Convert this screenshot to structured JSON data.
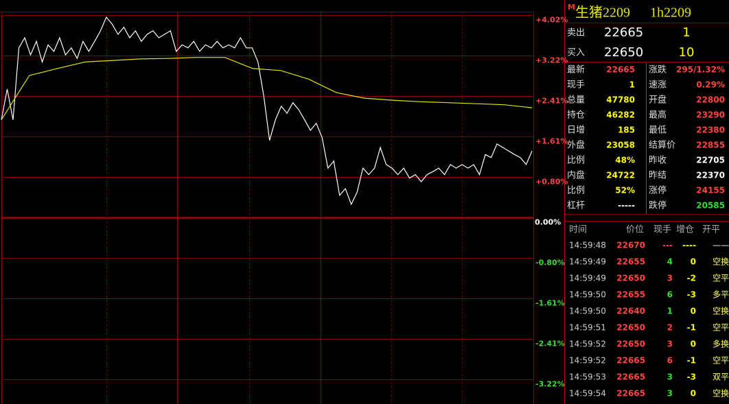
{
  "chart_data": {
    "type": "line",
    "background": "#000000",
    "grid_color": "#800000",
    "ylim": [
      -3.71,
      4.09
    ],
    "yticks": [
      {
        "value": 4.02,
        "label": "+4.02%"
      },
      {
        "value": 3.22,
        "label": "+3.22%"
      },
      {
        "value": 2.41,
        "label": "+2.41%"
      },
      {
        "value": 1.61,
        "label": "+1.61%"
      },
      {
        "value": 0.8,
        "label": "+0.80%"
      },
      {
        "value": 0,
        "label": "0.00%"
      },
      {
        "value": -0.8,
        "label": "-0.80%"
      },
      {
        "value": -1.61,
        "label": "-1.61%"
      },
      {
        "value": -2.41,
        "label": "-2.41%"
      },
      {
        "value": -3.22,
        "label": "-3.22%"
      }
    ],
    "series": [
      {
        "color": "#ffffff",
        "values": [
          1.94,
          2.55,
          1.94,
          3.37,
          3.57,
          3.23,
          3.5,
          3.09,
          3.43,
          3.3,
          3.57,
          3.23,
          3.37,
          3.16,
          3.5,
          3.3,
          3.5,
          3.71,
          3.98,
          3.84,
          3.64,
          3.78,
          3.57,
          3.71,
          3.5,
          3.64,
          3.71,
          3.57,
          3.64,
          3.71,
          3.3,
          3.43,
          3.37,
          3.5,
          3.3,
          3.43,
          3.37,
          3.5,
          3.37,
          3.43,
          3.37,
          3.57,
          3.37,
          3.37,
          3.09,
          2.41,
          1.53,
          1.94,
          2.21,
          2.07,
          2.28,
          2.14,
          1.94,
          1.73,
          1.87,
          1.59,
          0.98,
          1.12,
          0.44,
          0.57,
          0.26,
          0.5,
          0.98,
          0.85,
          0.98,
          1.39,
          1.05,
          0.98,
          0.85,
          0.98,
          0.78,
          0.85,
          0.71,
          0.85,
          0.91,
          0.98,
          0.85,
          1.05,
          0.98,
          1.05,
          0.98,
          1.05,
          0.85,
          1.25,
          1.19,
          1.46,
          1.39,
          1.32,
          1.25,
          1.19,
          1.05,
          1.32
        ]
      },
      {
        "color": "#e6e600",
        "values": [
          1.94,
          2.82,
          2.96,
          3.09,
          3.12,
          3.15,
          3.16,
          3.18,
          3.18,
          2.96,
          2.92,
          2.75,
          2.48,
          2.37,
          2.33,
          2.3,
          2.28,
          2.26,
          2.24,
          2.18
        ]
      }
    ]
  },
  "panel": {
    "marker": "M",
    "name": "生猪2209",
    "code": "1h2209",
    "quotes": [
      {
        "label": "卖出",
        "price": "22665",
        "volume": "1"
      },
      {
        "label": "买入",
        "price": "22650",
        "volume": "10"
      }
    ],
    "stats": [
      [
        {
          "label": "最新",
          "value": "22665",
          "color": "#ff4444"
        },
        {
          "label": "涨跌",
          "value": "295/1.32%",
          "color": "#ff4444"
        }
      ],
      [
        {
          "label": "现手",
          "value": "1",
          "color": "#ffff00"
        },
        {
          "label": "速涨",
          "value": "0.29%",
          "color": "#ff4444"
        }
      ],
      [
        {
          "label": "总量",
          "value": "47780",
          "color": "#ffff00"
        },
        {
          "label": "开盘",
          "value": "22800",
          "color": "#ff4444"
        }
      ],
      [
        {
          "label": "持仓",
          "value": "46282",
          "color": "#ffff00"
        },
        {
          "label": "最高",
          "value": "23290",
          "color": "#ff4444"
        }
      ],
      [
        {
          "label": "日增",
          "value": "185",
          "color": "#ffff00"
        },
        {
          "label": "最低",
          "value": "22380",
          "color": "#ff4444"
        }
      ],
      [
        {
          "label": "外盘",
          "value": "23058",
          "color": "#ffff00"
        },
        {
          "label": "结算价",
          "value": "22855",
          "color": "#ff4444"
        }
      ],
      [
        {
          "label": "比例",
          "value": "48%",
          "color": "#ffff00"
        },
        {
          "label": "昨收",
          "value": "22705",
          "color": "#ffffff"
        }
      ],
      [
        {
          "label": "内盘",
          "value": "24722",
          "color": "#ffff00"
        },
        {
          "label": "昨结",
          "value": "22370",
          "color": "#ffffff"
        }
      ],
      [
        {
          "label": "比例",
          "value": "52%",
          "color": "#ffff00"
        },
        {
          "label": "涨停",
          "value": "24155",
          "color": "#ff4444"
        }
      ],
      [
        {
          "label": "杠杆",
          "value": "-----",
          "color": "#ffffff"
        },
        {
          "label": "跌停",
          "value": "20585",
          "color": "#33dd33"
        }
      ]
    ],
    "trade_headers": [
      "时间",
      "价位",
      "现手",
      "增仓",
      "开平"
    ],
    "trades": [
      [
        "14:59:48",
        "22670",
        "---",
        "----",
        "——"
      ],
      [
        "14:59:49",
        "22655",
        "4",
        "0",
        "空换"
      ],
      [
        "14:59:49",
        "22650",
        "3",
        "-2",
        "空平"
      ],
      [
        "14:59:50",
        "22655",
        "6",
        "-3",
        "多平"
      ],
      [
        "14:59:50",
        "22640",
        "1",
        "0",
        "空换"
      ],
      [
        "14:59:51",
        "22650",
        "2",
        "-1",
        "空平"
      ],
      [
        "14:59:52",
        "22650",
        "3",
        "0",
        "多换"
      ],
      [
        "14:59:52",
        "22665",
        "6",
        "-1",
        "空平"
      ],
      [
        "14:59:53",
        "22665",
        "3",
        "-3",
        "双平"
      ],
      [
        "14:59:54",
        "22665",
        "3",
        "0",
        "空换"
      ]
    ],
    "trade_volume_colors": [
      "#ff4444",
      "#33dd33",
      "#ff4444",
      "#33dd33",
      "#33dd33",
      "#ff4444",
      "#ff4444",
      "#ff4444",
      "#33dd33",
      "#33dd33"
    ]
  }
}
